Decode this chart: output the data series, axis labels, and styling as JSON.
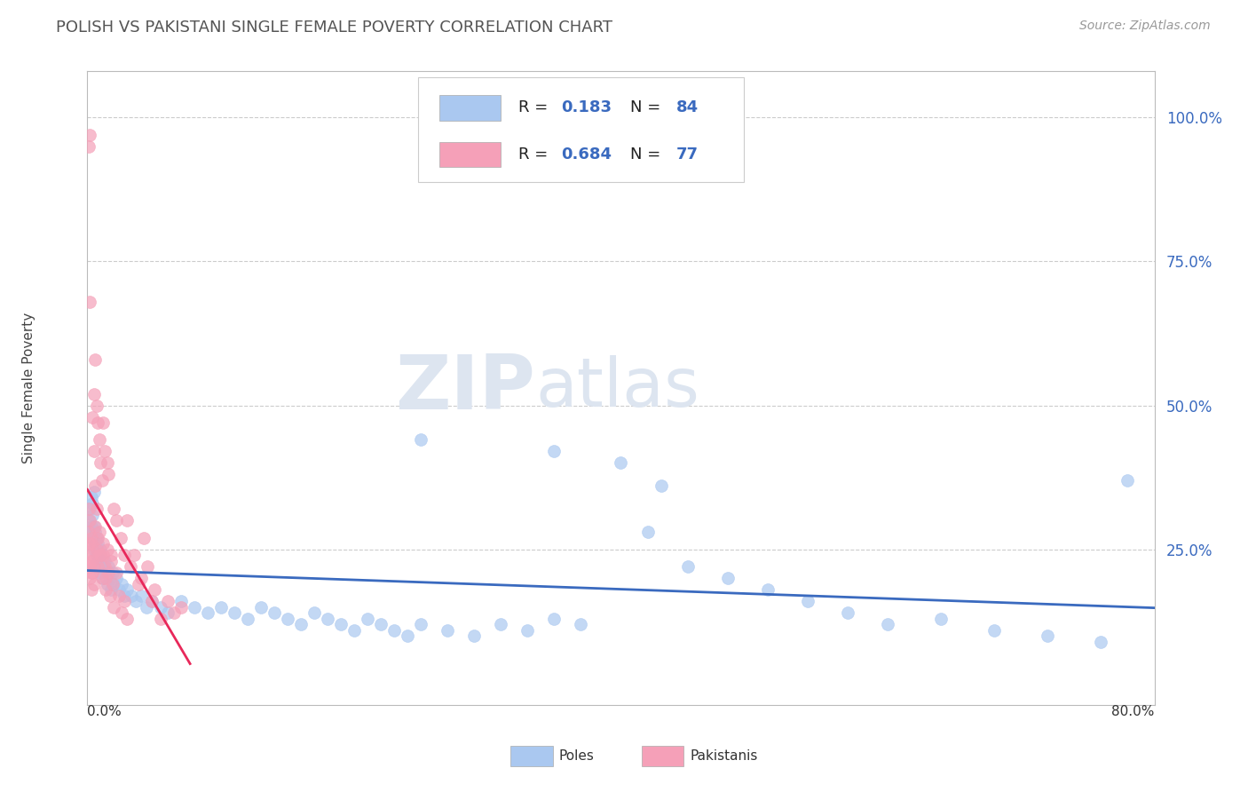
{
  "title": "POLISH VS PAKISTANI SINGLE FEMALE POVERTY CORRELATION CHART",
  "source": "Source: ZipAtlas.com",
  "ylabel": "Single Female Poverty",
  "xlim": [
    0.0,
    0.8
  ],
  "ylim": [
    -0.02,
    1.08
  ],
  "yticks_right": [
    0.25,
    0.5,
    0.75,
    1.0
  ],
  "ytick_labels_right": [
    "25.0%",
    "50.0%",
    "75.0%",
    "100.0%"
  ],
  "watermark_zip": "ZIP",
  "watermark_atlas": "atlas",
  "poles_color": "#aac8f0",
  "pakistanis_color": "#f5a0b8",
  "poles_line_color": "#3a6abf",
  "pakistanis_line_color": "#e8285a",
  "poles_R": 0.183,
  "poles_N": 84,
  "pakistanis_R": 0.684,
  "pakistanis_N": 77,
  "background_color": "#ffffff",
  "grid_color": "#cccccc",
  "poles_x": [
    0.001,
    0.002,
    0.002,
    0.003,
    0.003,
    0.004,
    0.004,
    0.004,
    0.005,
    0.005,
    0.005,
    0.006,
    0.006,
    0.007,
    0.007,
    0.008,
    0.008,
    0.009,
    0.009,
    0.01,
    0.01,
    0.011,
    0.012,
    0.013,
    0.014,
    0.015,
    0.016,
    0.017,
    0.018,
    0.019,
    0.02,
    0.022,
    0.024,
    0.026,
    0.028,
    0.03,
    0.033,
    0.036,
    0.04,
    0.044,
    0.048,
    0.055,
    0.06,
    0.07,
    0.08,
    0.09,
    0.1,
    0.11,
    0.12,
    0.13,
    0.14,
    0.15,
    0.16,
    0.17,
    0.18,
    0.19,
    0.2,
    0.21,
    0.22,
    0.23,
    0.24,
    0.25,
    0.27,
    0.29,
    0.31,
    0.33,
    0.35,
    0.37,
    0.4,
    0.42,
    0.45,
    0.48,
    0.51,
    0.54,
    0.57,
    0.6,
    0.64,
    0.68,
    0.72,
    0.76,
    0.25,
    0.35,
    0.43,
    0.78
  ],
  "poles_y": [
    0.3,
    0.32,
    0.28,
    0.34,
    0.29,
    0.27,
    0.33,
    0.31,
    0.25,
    0.29,
    0.35,
    0.26,
    0.28,
    0.24,
    0.27,
    0.23,
    0.26,
    0.22,
    0.24,
    0.21,
    0.25,
    0.22,
    0.2,
    0.23,
    0.21,
    0.19,
    0.22,
    0.2,
    0.18,
    0.21,
    0.19,
    0.2,
    0.18,
    0.19,
    0.17,
    0.18,
    0.17,
    0.16,
    0.17,
    0.15,
    0.16,
    0.15,
    0.14,
    0.16,
    0.15,
    0.14,
    0.15,
    0.14,
    0.13,
    0.15,
    0.14,
    0.13,
    0.12,
    0.14,
    0.13,
    0.12,
    0.11,
    0.13,
    0.12,
    0.11,
    0.1,
    0.12,
    0.11,
    0.1,
    0.12,
    0.11,
    0.13,
    0.12,
    0.4,
    0.28,
    0.22,
    0.2,
    0.18,
    0.16,
    0.14,
    0.12,
    0.13,
    0.11,
    0.1,
    0.09,
    0.44,
    0.42,
    0.36,
    0.37
  ],
  "pak_x": [
    0.001,
    0.001,
    0.001,
    0.002,
    0.002,
    0.002,
    0.003,
    0.003,
    0.003,
    0.004,
    0.004,
    0.005,
    0.005,
    0.005,
    0.006,
    0.006,
    0.007,
    0.007,
    0.008,
    0.008,
    0.009,
    0.009,
    0.01,
    0.011,
    0.012,
    0.012,
    0.013,
    0.014,
    0.015,
    0.016,
    0.018,
    0.02,
    0.022,
    0.025,
    0.028,
    0.03,
    0.032,
    0.035,
    0.038,
    0.04,
    0.042,
    0.045,
    0.048,
    0.05,
    0.055,
    0.06,
    0.065,
    0.07,
    0.002,
    0.001,
    0.001,
    0.002,
    0.003,
    0.004,
    0.005,
    0.003,
    0.004,
    0.006,
    0.007,
    0.008,
    0.009,
    0.01,
    0.011,
    0.012,
    0.013,
    0.014,
    0.015,
    0.016,
    0.017,
    0.018,
    0.019,
    0.02,
    0.022,
    0.024,
    0.026,
    0.028,
    0.03
  ],
  "pak_y": [
    0.28,
    0.32,
    0.95,
    0.97,
    0.22,
    0.68,
    0.26,
    0.24,
    0.21,
    0.48,
    0.25,
    0.52,
    0.42,
    0.22,
    0.58,
    0.36,
    0.5,
    0.32,
    0.47,
    0.27,
    0.44,
    0.24,
    0.4,
    0.37,
    0.47,
    0.24,
    0.42,
    0.2,
    0.4,
    0.38,
    0.24,
    0.32,
    0.3,
    0.27,
    0.24,
    0.3,
    0.22,
    0.24,
    0.19,
    0.2,
    0.27,
    0.22,
    0.16,
    0.18,
    0.13,
    0.16,
    0.14,
    0.15,
    0.3,
    0.26,
    0.23,
    0.2,
    0.18,
    0.23,
    0.19,
    0.27,
    0.21,
    0.29,
    0.25,
    0.22,
    0.28,
    0.24,
    0.2,
    0.26,
    0.22,
    0.18,
    0.25,
    0.21,
    0.17,
    0.23,
    0.19,
    0.15,
    0.21,
    0.17,
    0.14,
    0.16,
    0.13
  ]
}
